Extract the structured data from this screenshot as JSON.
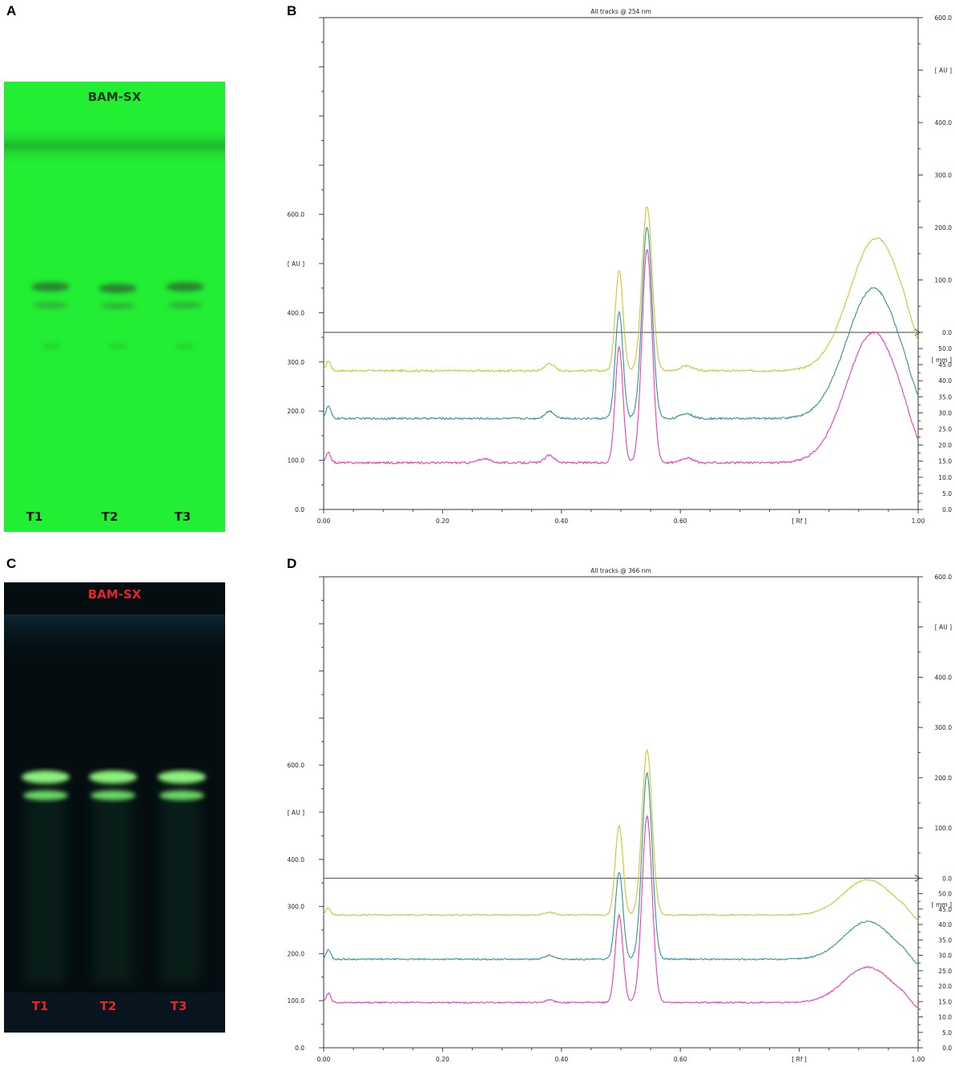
{
  "panels": {
    "A": {
      "letter": "A"
    },
    "B": {
      "letter": "B"
    },
    "C": {
      "letter": "C"
    },
    "D": {
      "letter": "D"
    }
  },
  "plates": [
    {
      "id": "A",
      "title": "BAM-SX",
      "lanes": [
        "T1",
        "T2",
        "T3"
      ],
      "background": "#22ee33",
      "title_color": "#1a3a1a",
      "lane_color": "#0a1a0a"
    },
    {
      "id": "C",
      "title": "BAM-SX",
      "lanes": [
        "T1",
        "T2",
        "T3"
      ],
      "background": "#050d10",
      "title_color": "#e8232a",
      "lane_color": "#e8232a"
    }
  ],
  "chart_data": [
    {
      "panel": "B",
      "type": "line",
      "title": "All tracks @ 254 nm",
      "xlabel": "[ Rf ]",
      "ylabel": "[ AU ]",
      "y2label_upper": "[ AU ]",
      "y2label_lower": "[ mm ]",
      "xlim": [
        0,
        1
      ],
      "ylim": [
        0,
        1000
      ],
      "x_ticks": [
        "0.00",
        "0.20",
        "0.40",
        "0.60",
        "[ Rf ]",
        "1.00"
      ],
      "y_ticks": [
        {
          "v": 0,
          "label": "0.0"
        },
        {
          "v": 100,
          "label": "100.0"
        },
        {
          "v": 200,
          "label": "200.0"
        },
        {
          "v": 300,
          "label": "300.0"
        },
        {
          "v": 400,
          "label": "400.0"
        },
        {
          "v": 600,
          "label": "600.0"
        }
      ],
      "y_label_at": 500,
      "y2_upper_ticks": [
        {
          "v": 0,
          "label": "0.0"
        },
        {
          "v": 100,
          "label": "100.0"
        },
        {
          "v": 200,
          "label": "200.0"
        },
        {
          "v": 300,
          "label": "300.0"
        },
        {
          "v": 400,
          "label": "400.0"
        },
        {
          "v": 600,
          "label": "600.0"
        }
      ],
      "y2_upper_range": [
        0,
        600
      ],
      "y2_upper_label_at": 500,
      "y2_lower_ticks": [
        {
          "v": 0,
          "label": "0.0"
        },
        {
          "v": 5,
          "label": "5.0"
        },
        {
          "v": 10,
          "label": "10.0"
        },
        {
          "v": 15,
          "label": "15.0"
        },
        {
          "v": 20,
          "label": "20.0"
        },
        {
          "v": 25,
          "label": "25.0"
        },
        {
          "v": 30,
          "label": "30.0"
        },
        {
          "v": 35,
          "label": "35.0"
        },
        {
          "v": 40,
          "label": "40.0"
        },
        {
          "v": 45,
          "label": "45.0"
        },
        {
          "v": 50,
          "label": "50.0"
        }
      ],
      "y2_lower_range": [
        0,
        55
      ],
      "y2_lower_label_at": 46.5,
      "divider_value": 360,
      "series": [
        {
          "color": "#c9c832",
          "baseline": 282,
          "peaks": [
            [
              0.008,
              20,
              0.004
            ],
            [
              0.38,
              15,
              0.008
            ],
            [
              0.497,
              205,
              0.0065
            ],
            [
              0.544,
              335,
              0.0085
            ],
            [
              0.61,
              10,
              0.01
            ],
            [
              0.93,
              270,
              0.045
            ]
          ],
          "noise": 4
        },
        {
          "color": "#2e9497",
          "baseline": 185,
          "peaks": [
            [
              0.008,
              25,
              0.004
            ],
            [
              0.38,
              15,
              0.008
            ],
            [
              0.497,
              215,
              0.0065
            ],
            [
              0.544,
              390,
              0.0085
            ],
            [
              0.61,
              10,
              0.01
            ],
            [
              0.925,
              265,
              0.045
            ]
          ],
          "noise": 4
        },
        {
          "color": "#e93cbf",
          "baseline": 95,
          "peaks": [
            [
              0.008,
              20,
              0.004
            ],
            [
              0.27,
              8,
              0.01
            ],
            [
              0.38,
              15,
              0.008
            ],
            [
              0.497,
              235,
              0.0065
            ],
            [
              0.544,
              435,
              0.0085
            ],
            [
              0.61,
              10,
              0.01
            ],
            [
              0.925,
              265,
              0.045
            ]
          ],
          "noise": 4
        }
      ]
    },
    {
      "panel": "D",
      "type": "line",
      "title": "All tracks @ 366 nm",
      "xlabel": "[ Rf ]",
      "ylabel": "[ AU ]",
      "y2label_upper": "[ AU ]",
      "y2label_lower": "[ mm ]",
      "xlim": [
        0,
        1
      ],
      "ylim": [
        0,
        1000
      ],
      "x_ticks": [
        "0.00",
        "0.20",
        "0.40",
        "0.60",
        "[ Rf ]",
        "1.00"
      ],
      "y_ticks": [
        {
          "v": 0,
          "label": "0.0"
        },
        {
          "v": 100,
          "label": "100.0"
        },
        {
          "v": 200,
          "label": "200.0"
        },
        {
          "v": 300,
          "label": "300.0"
        },
        {
          "v": 400,
          "label": "400.0"
        },
        {
          "v": 600,
          "label": "600.0"
        }
      ],
      "y_label_at": 500,
      "y2_upper_ticks": [
        {
          "v": 0,
          "label": "0.0"
        },
        {
          "v": 100,
          "label": "100.0"
        },
        {
          "v": 200,
          "label": "200.0"
        },
        {
          "v": 300,
          "label": "300.0"
        },
        {
          "v": 400,
          "label": "400.0"
        },
        {
          "v": 600,
          "label": "600.0"
        }
      ],
      "y2_upper_range": [
        0,
        600
      ],
      "y2_upper_label_at": 500,
      "y2_lower_ticks": [
        {
          "v": 0,
          "label": "0.0"
        },
        {
          "v": 5,
          "label": "5.0"
        },
        {
          "v": 10,
          "label": "10.0"
        },
        {
          "v": 15,
          "label": "15.0"
        },
        {
          "v": 20,
          "label": "20.0"
        },
        {
          "v": 25,
          "label": "25.0"
        },
        {
          "v": 30,
          "label": "30.0"
        },
        {
          "v": 35,
          "label": "35.0"
        },
        {
          "v": 40,
          "label": "40.0"
        },
        {
          "v": 45,
          "label": "45.0"
        },
        {
          "v": 50,
          "label": "50.0"
        }
      ],
      "y2_lower_range": [
        0,
        55
      ],
      "y2_lower_label_at": 46.5,
      "divider_value": 360,
      "series": [
        {
          "color": "#c9c832",
          "baseline": 282,
          "peaks": [
            [
              0.008,
              15,
              0.004
            ],
            [
              0.38,
              5,
              0.008
            ],
            [
              0.497,
              190,
              0.0065
            ],
            [
              0.544,
              350,
              0.0085
            ],
            [
              0.915,
              75,
              0.04
            ]
          ],
          "noise": 3
        },
        {
          "color": "#2e9497",
          "baseline": 188,
          "peaks": [
            [
              0.008,
              20,
              0.004
            ],
            [
              0.38,
              8,
              0.008
            ],
            [
              0.497,
              185,
              0.0065
            ],
            [
              0.544,
              395,
              0.0085
            ],
            [
              0.915,
              80,
              0.04
            ]
          ],
          "noise": 3
        },
        {
          "color": "#e93cbf",
          "baseline": 96,
          "peaks": [
            [
              0.008,
              20,
              0.004
            ],
            [
              0.38,
              5,
              0.008
            ],
            [
              0.497,
              185,
              0.0065
            ],
            [
              0.544,
              395,
              0.0085
            ],
            [
              0.915,
              75,
              0.04
            ]
          ],
          "noise": 3
        }
      ]
    }
  ]
}
